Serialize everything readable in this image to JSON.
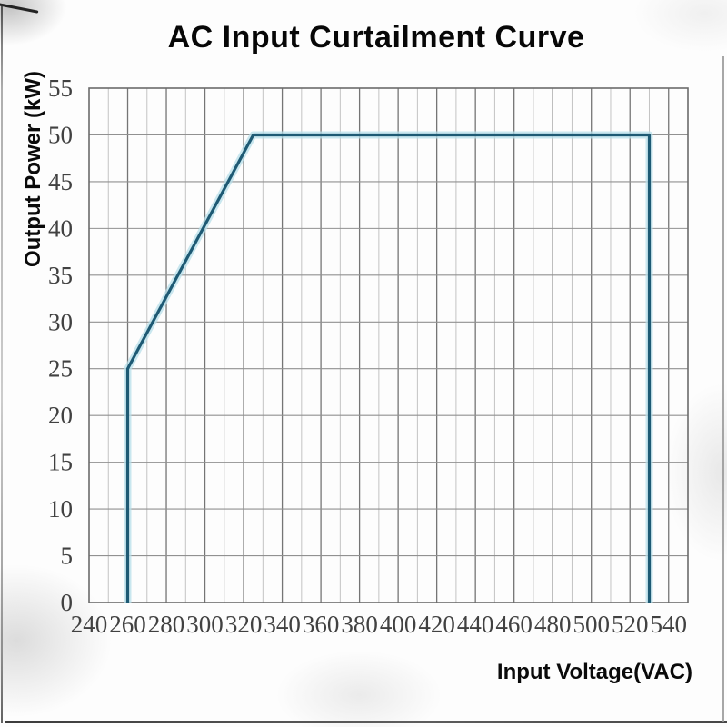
{
  "title": "AC Input Curtailment Curve",
  "chart_data": {
    "type": "line",
    "title": "AC Input Curtailment Curve",
    "xlabel": "Input Voltage(VAC)",
    "ylabel": "Output Power (kW)",
    "xlim": [
      240,
      550
    ],
    "ylim": [
      0,
      55
    ],
    "x_ticks": [
      240,
      260,
      280,
      300,
      320,
      340,
      360,
      380,
      400,
      420,
      440,
      460,
      480,
      500,
      520,
      540
    ],
    "y_ticks": [
      0,
      5,
      10,
      15,
      20,
      25,
      30,
      35,
      40,
      45,
      50,
      55
    ],
    "x_minor_grid_step": 10,
    "y_grid_step": 5,
    "grid": true,
    "legend_position": "none",
    "series": [
      {
        "name": "AC input curtailment curve",
        "points": [
          [
            260,
            0
          ],
          [
            260,
            25
          ],
          [
            325,
            50
          ],
          [
            530,
            50
          ],
          [
            530,
            0
          ]
        ]
      }
    ],
    "colors": {
      "line": "#1e5a74",
      "line_glow": "#b7dfe9",
      "grid_major_vertical": "#757575",
      "grid_minor_vertical": "#c3c3c3",
      "grid_horizontal": "#919191",
      "frame": "#6b6b6b",
      "tick_text": "#414141",
      "label_text": "#0a0a0a",
      "background": "#fdfdfd"
    }
  }
}
